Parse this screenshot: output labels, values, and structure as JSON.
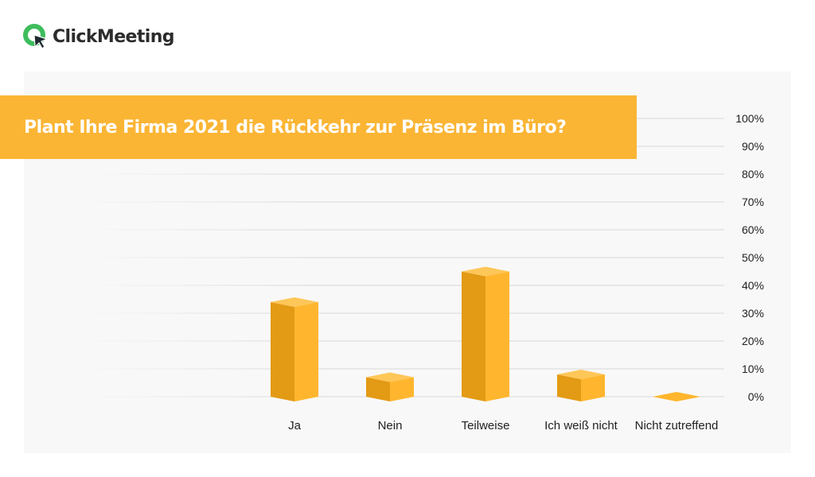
{
  "brand": {
    "name": "ClickMeeting",
    "accent": "#fbb534",
    "logo_green": "#3dbd5d"
  },
  "chart_data": {
    "type": "bar",
    "title": "Plant Ihre Firma 2021 die Rückkehr zur Präsenz im Büro?",
    "xlabel": "",
    "ylabel": "",
    "categories": [
      "Ja",
      "Nein",
      "Teilweise",
      "Ich weiß nicht",
      "Nicht zutreffend"
    ],
    "values": [
      34,
      7,
      45,
      8,
      0
    ],
    "unit": "%",
    "ylim": [
      0,
      100
    ],
    "yticks": [
      "0%",
      "10%",
      "20%",
      "30%",
      "40%",
      "50%",
      "60%",
      "70%",
      "80%",
      "90%",
      "100%"
    ],
    "grid": true,
    "bar_style": "3d",
    "colors": {
      "front": "#ffb62e",
      "side": "#e39a14",
      "top": "#ffc658"
    }
  }
}
